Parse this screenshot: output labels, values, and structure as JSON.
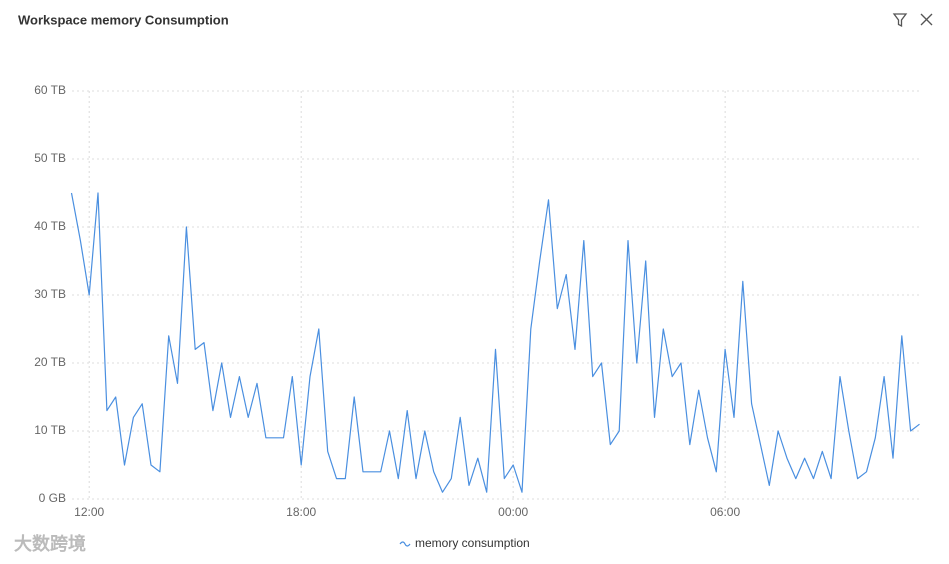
{
  "chart_data": {
    "type": "line",
    "title": "Workspace memory Consumption",
    "watermark": "大数跨境",
    "x": [
      11.5,
      11.75,
      12,
      12.25,
      12.5,
      12.75,
      13,
      13.25,
      13.5,
      13.75,
      14,
      14.25,
      14.5,
      14.75,
      15,
      15.25,
      15.5,
      15.75,
      16,
      16.25,
      16.5,
      16.75,
      17,
      17.25,
      17.5,
      17.75,
      18,
      18.25,
      18.5,
      18.75,
      19,
      19.25,
      19.5,
      19.75,
      20,
      20.25,
      20.5,
      20.75,
      21,
      21.25,
      21.5,
      21.75,
      22,
      22.25,
      22.5,
      22.75,
      23,
      23.25,
      23.5,
      23.75,
      24,
      24.25,
      24.5,
      24.75,
      25,
      25.25,
      25.5,
      25.75,
      26,
      26.25,
      26.5,
      26.75,
      27,
      27.25,
      27.5,
      27.75,
      28,
      28.25,
      28.5,
      28.75,
      29,
      29.25,
      29.5,
      29.75,
      30,
      30.25,
      30.5,
      30.75,
      31,
      31.25,
      31.5,
      31.75,
      32,
      32.25,
      32.5,
      32.75,
      33,
      33.25,
      33.5,
      33.75,
      34,
      34.25,
      34.5,
      34.75,
      35,
      35.25,
      35.5
    ],
    "series": [
      {
        "name": "memory consumption",
        "color": "#4a8fe0",
        "values": [
          45,
          38,
          30,
          45,
          13,
          15,
          5,
          12,
          14,
          5,
          4,
          24,
          17,
          40,
          22,
          23,
          13,
          20,
          12,
          18,
          12,
          17,
          9,
          9,
          9,
          18,
          5,
          18,
          25,
          7,
          3,
          3,
          15,
          4,
          4,
          4,
          10,
          3,
          13,
          3,
          10,
          4,
          1,
          3,
          12,
          2,
          6,
          1,
          22,
          3,
          5,
          1,
          25,
          35,
          44,
          28,
          33,
          22,
          38,
          18,
          20,
          8,
          10,
          38,
          20,
          35,
          12,
          25,
          18,
          20,
          8,
          16,
          9,
          4,
          22,
          12,
          32,
          14,
          8,
          2,
          10,
          6,
          3,
          6,
          3,
          7,
          3,
          18,
          10,
          3,
          4,
          9,
          18,
          6,
          24,
          10,
          11
        ]
      }
    ],
    "xlim": [
      11.4,
      35.6
    ],
    "xticks": [
      {
        "value": 12,
        "label": "12:00"
      },
      {
        "value": 18,
        "label": "18:00"
      },
      {
        "value": 24,
        "label": "00:00"
      },
      {
        "value": 30,
        "label": "06:00"
      }
    ],
    "ylim": [
      0,
      60
    ],
    "yticks": [
      {
        "value": 0,
        "label": "0 GB"
      },
      {
        "value": 10,
        "label": "10 TB"
      },
      {
        "value": 20,
        "label": "20 TB"
      },
      {
        "value": 30,
        "label": "30 TB"
      },
      {
        "value": 40,
        "label": "40 TB"
      },
      {
        "value": 50,
        "label": "50 TB"
      },
      {
        "value": 60,
        "label": "60 TB"
      }
    ],
    "grid": true,
    "legend": "bottom"
  }
}
